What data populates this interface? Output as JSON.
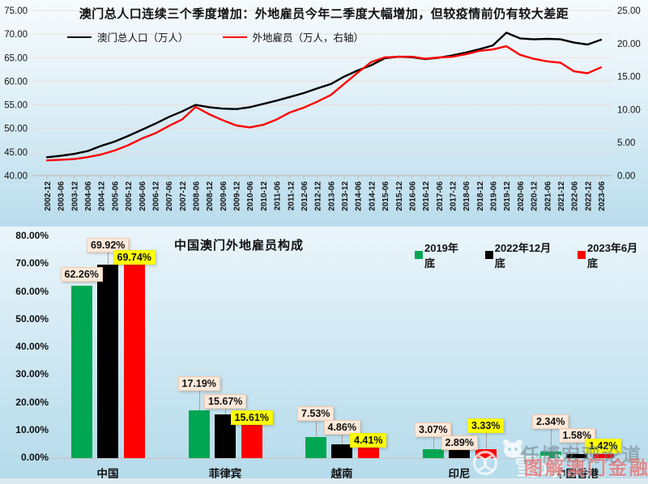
{
  "top_chart": {
    "title": "澳门总人口连续三个季度增加：外地雇员今年二季度大幅增加，但较疫情前仍有较大差距"
  },
  "bottom_chart": {
    "title": "中国澳门外地雇员构成"
  },
  "watermark": {
    "logo": "xueqiu-snowball-logo",
    "mascot": "panda-face",
    "brand": "雪球",
    "text_gray": "任博宏观论道",
    "text_red": "图解澳门金融"
  },
  "chart_data": [
    {
      "type": "line",
      "title": "澳门总人口连续三个季度增加：外地雇员今年二季度大幅增加，但较疫情前仍有较大差距",
      "x": [
        "2002-12",
        "2003-06",
        "2003-12",
        "2004-06",
        "2004-12",
        "2005-06",
        "2005-12",
        "2006-06",
        "2006-12",
        "2007-06",
        "2007-12",
        "2008-06",
        "2008-12",
        "2009-06",
        "2009-12",
        "2010-06",
        "2010-12",
        "2011-06",
        "2011-12",
        "2012-06",
        "2012-12",
        "2013-06",
        "2013-12",
        "2014-06",
        "2014-12",
        "2015-06",
        "2015-12",
        "2016-06",
        "2016-12",
        "2017-06",
        "2017-12",
        "2018-06",
        "2018-12",
        "2019-06",
        "2019-12",
        "2020-06",
        "2020-12",
        "2021-06",
        "2021-12",
        "2022-06",
        "2022-12",
        "2023-06"
      ],
      "series": [
        {
          "name": "澳门总人口（万人）",
          "color": "#000000",
          "axis": "left",
          "values": [
            43.9,
            44.2,
            44.6,
            45.2,
            46.3,
            47.2,
            48.4,
            49.7,
            51.0,
            52.4,
            53.6,
            55.0,
            54.5,
            54.2,
            54.1,
            54.5,
            55.2,
            55.9,
            56.7,
            57.5,
            58.5,
            59.4,
            61.0,
            62.3,
            63.4,
            64.9,
            65.2,
            65.1,
            64.7,
            65.0,
            65.5,
            66.1,
            66.8,
            67.6,
            70.3,
            69.1,
            68.9,
            69.0,
            68.9,
            68.2,
            67.8,
            68.8
          ]
        },
        {
          "name": "外地雇员（万人，右轴）",
          "color": "#ff0000",
          "axis": "right",
          "values": [
            2.3,
            2.4,
            2.5,
            2.8,
            3.2,
            3.8,
            4.6,
            5.6,
            6.4,
            7.5,
            8.5,
            10.4,
            9.3,
            8.4,
            7.6,
            7.3,
            7.7,
            8.5,
            9.6,
            10.3,
            11.2,
            12.2,
            13.9,
            15.6,
            17.2,
            17.9,
            18.0,
            18.0,
            17.7,
            17.9,
            18.0,
            18.4,
            18.9,
            19.1,
            19.6,
            18.3,
            17.7,
            17.3,
            17.1,
            15.8,
            15.5,
            16.4
          ]
        }
      ],
      "left_axis": {
        "min": 40,
        "max": 75,
        "ticks": [
          "40.00",
          "45.00",
          "50.00",
          "55.00",
          "60.00",
          "65.00",
          "70.00",
          "75.00"
        ]
      },
      "right_axis": {
        "min": 0,
        "max": 25,
        "ticks": [
          "0.00",
          "5.00",
          "10.00",
          "15.00",
          "20.00",
          "25.00"
        ]
      },
      "grid": true,
      "legend_position": "top"
    },
    {
      "type": "bar",
      "title": "中国澳门外地雇员构成",
      "categories": [
        "中国",
        "菲律宾",
        "越南",
        "印尼",
        "中国香港"
      ],
      "series": [
        {
          "name": "2019年底",
          "color": "#00a651",
          "values": [
            62.26,
            17.19,
            7.53,
            3.07,
            2.34
          ],
          "labels": [
            "62.26%",
            "17.19%",
            "7.53%",
            "3.07%",
            "2.34%"
          ],
          "label_style": "cream"
        },
        {
          "name": "2022年12月底",
          "color": "#000000",
          "values": [
            69.92,
            15.67,
            4.86,
            2.89,
            1.58
          ],
          "labels": [
            "69.92%",
            "15.67%",
            "4.86%",
            "2.89%",
            "1.58%"
          ],
          "label_style": "cream"
        },
        {
          "name": "2023年6月底",
          "color": "#ff0000",
          "values": [
            69.74,
            15.61,
            4.41,
            3.33,
            1.42
          ],
          "labels": [
            "69.74%",
            "15.61%",
            "4.41%",
            "3.33%",
            "1.42%"
          ],
          "label_style": "yellow"
        }
      ],
      "ylim": [
        0,
        80
      ],
      "yticks": [
        "0.00%",
        "10.00%",
        "20.00%",
        "30.00%",
        "40.00%",
        "50.00%",
        "60.00%",
        "70.00%",
        "80.00%"
      ],
      "grid": false,
      "legend_position": "top-right"
    }
  ]
}
